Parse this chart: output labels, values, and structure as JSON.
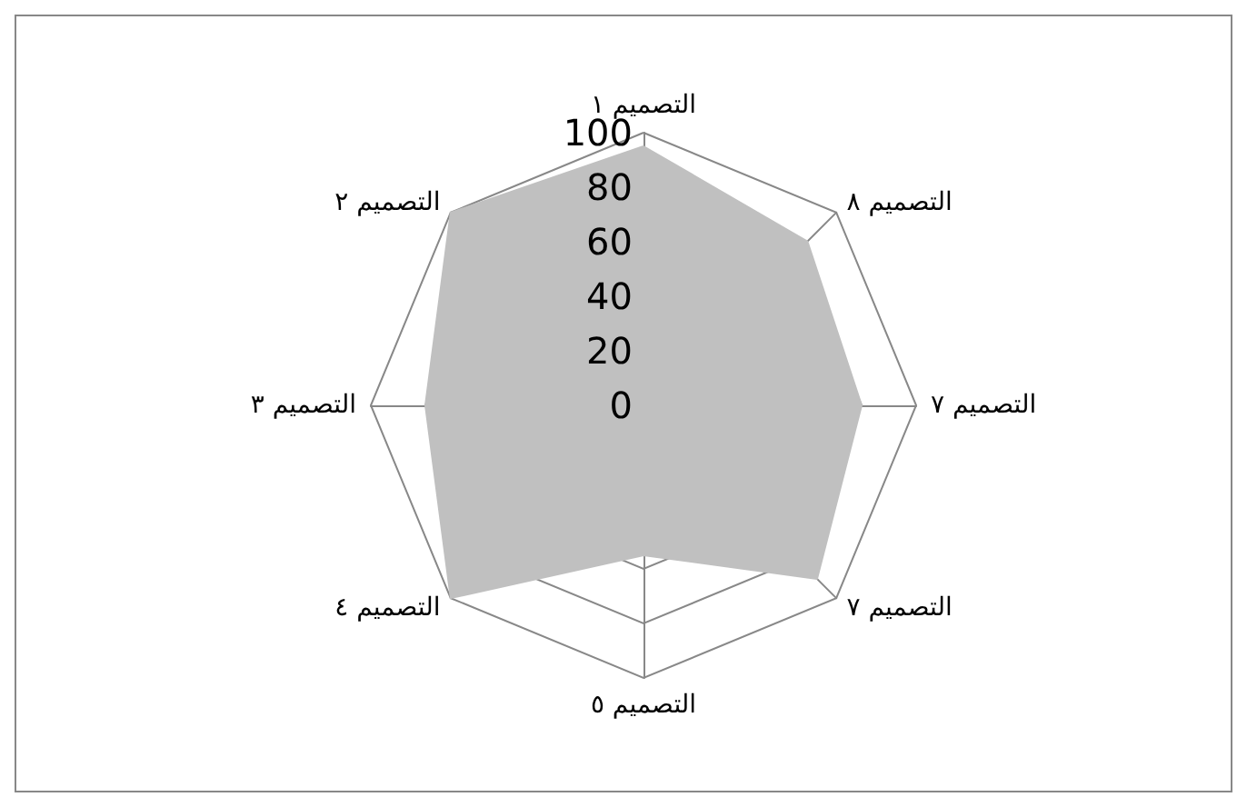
{
  "chart_data": {
    "type": "radar",
    "categories": [
      "التصميم ١",
      "التصميم ٨",
      "التصميم ٧",
      "التصميم ٧",
      "التصميم ٥",
      "التصميم ٤",
      "التصميم ٣",
      "التصميم ٢"
    ],
    "series": [
      {
        "color": "#c0c0c0",
        "values": [
          95,
          85,
          80,
          90,
          55,
          100,
          80,
          100
        ]
      }
    ],
    "ylim": [
      0,
      100
    ],
    "yticks": [
      0,
      20,
      40,
      60,
      80,
      100
    ],
    "grid": true
  }
}
